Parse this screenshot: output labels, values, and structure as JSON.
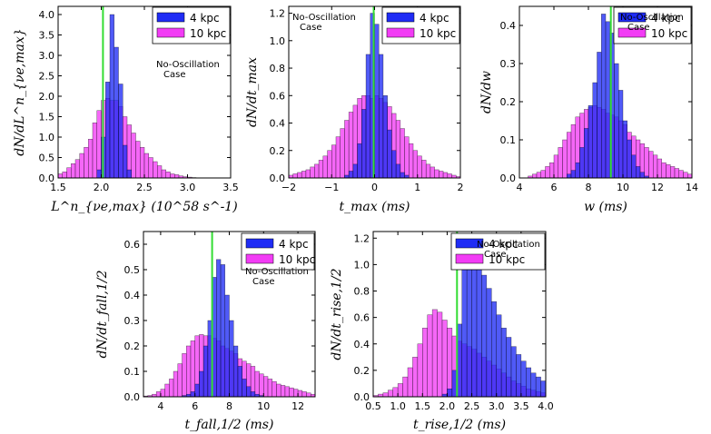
{
  "colors": {
    "blue": "#1f2cf5",
    "magenta": "#f23cf5",
    "green": "#33dd33"
  },
  "chart_data": [
    {
      "type": "histogram",
      "ylabel": "dN/dL^n_{νe,max}",
      "xlabel": "L^n_{νe,max} (10^58 s^-1)",
      "xlim": [
        1.5,
        3.5
      ],
      "ylim": [
        0,
        4.2
      ],
      "xticks": [
        "1.5",
        "2.0",
        "2.5",
        "3.0",
        "3.5"
      ],
      "yticks": [
        "0.0",
        "0.5",
        "1.0",
        "1.5",
        "2.0",
        "2.5",
        "3.0",
        "3.5",
        "4.0"
      ],
      "vline": 2.02,
      "annotation": [
        "No-Oscillation",
        "Case"
      ],
      "legend": [
        "4 kpc",
        "10 kpc"
      ],
      "bins": {
        "start": 1.5,
        "width": 0.05
      },
      "series": [
        {
          "name": "4 kpc",
          "values": [
            0,
            0,
            0,
            0,
            0,
            0,
            0,
            0,
            0,
            0.2,
            1.0,
            2.35,
            4.0,
            3.2,
            2.3,
            0.8,
            0.2,
            0,
            0,
            0,
            0,
            0,
            0,
            0,
            0,
            0,
            0,
            0,
            0,
            0,
            0,
            0,
            0,
            0,
            0,
            0,
            0,
            0,
            0,
            0
          ]
        },
        {
          "name": "10 kpc",
          "values": [
            0.1,
            0.15,
            0.25,
            0.35,
            0.45,
            0.6,
            0.75,
            0.95,
            1.35,
            1.65,
            1.9,
            1.95,
            1.9,
            1.9,
            1.75,
            1.5,
            1.3,
            1.1,
            0.9,
            0.75,
            0.6,
            0.5,
            0.4,
            0.3,
            0.2,
            0.15,
            0.1,
            0.08,
            0.05,
            0.03,
            0.02,
            0.01,
            0,
            0,
            0,
            0,
            0,
            0,
            0,
            0
          ]
        }
      ]
    },
    {
      "type": "histogram",
      "ylabel": "dN/dt_max",
      "xlabel": "t_max (ms)",
      "xlim": [
        -2,
        2
      ],
      "ylim": [
        0,
        1.25
      ],
      "xticks": [
        "−2",
        "−1",
        "0",
        "1",
        "2"
      ],
      "yticks": [
        "0.0",
        "0.2",
        "0.4",
        "0.6",
        "0.8",
        "1.0",
        "1.2"
      ],
      "vline": -0.02,
      "annotation": [
        "No-Oscillation",
        "Case"
      ],
      "legend": [
        "4 kpc",
        "10 kpc"
      ],
      "bins": {
        "start": -2,
        "width": 0.1
      },
      "series": [
        {
          "name": "4 kpc",
          "values": [
            0,
            0,
            0,
            0,
            0,
            0,
            0,
            0,
            0,
            0,
            0,
            0,
            0,
            0.02,
            0.05,
            0.1,
            0.25,
            0.5,
            0.9,
            1.2,
            1.12,
            0.9,
            0.6,
            0.35,
            0.2,
            0.1,
            0.04,
            0.02,
            0,
            0,
            0,
            0,
            0,
            0,
            0,
            0,
            0,
            0,
            0,
            0
          ]
        },
        {
          "name": "10 kpc",
          "values": [
            0.02,
            0.03,
            0.04,
            0.05,
            0.06,
            0.08,
            0.1,
            0.13,
            0.16,
            0.2,
            0.24,
            0.3,
            0.36,
            0.42,
            0.48,
            0.53,
            0.58,
            0.6,
            0.6,
            0.58,
            0.6,
            0.58,
            0.55,
            0.52,
            0.47,
            0.42,
            0.36,
            0.3,
            0.25,
            0.2,
            0.16,
            0.13,
            0.1,
            0.08,
            0.06,
            0.05,
            0.04,
            0.03,
            0.02,
            0.01
          ]
        }
      ]
    },
    {
      "type": "histogram",
      "ylabel": "dN/dw",
      "xlabel": "w (ms)",
      "xlim": [
        4,
        14
      ],
      "ylim": [
        0,
        0.45
      ],
      "xticks": [
        "4",
        "6",
        "8",
        "10",
        "12",
        "14"
      ],
      "yticks": [
        "0.0",
        "0.1",
        "0.2",
        "0.3",
        "0.4"
      ],
      "vline": 9.3,
      "annotation": [
        "No-Oscillation",
        "Case"
      ],
      "legend": [
        "4 kpc",
        "10 kpc"
      ],
      "bins": {
        "start": 4,
        "width": 0.25
      },
      "series": [
        {
          "name": "4 kpc",
          "values": [
            0,
            0,
            0,
            0,
            0,
            0,
            0,
            0,
            0,
            0,
            0,
            0.01,
            0.02,
            0.04,
            0.08,
            0.13,
            0.19,
            0.25,
            0.33,
            0.43,
            0.41,
            0.38,
            0.3,
            0.23,
            0.15,
            0.1,
            0.06,
            0.03,
            0.015,
            0.005,
            0,
            0,
            0,
            0,
            0,
            0,
            0,
            0,
            0,
            0
          ]
        },
        {
          "name": "10 kpc",
          "values": [
            0,
            0,
            0.005,
            0.01,
            0.015,
            0.02,
            0.03,
            0.04,
            0.06,
            0.08,
            0.1,
            0.12,
            0.14,
            0.16,
            0.17,
            0.18,
            0.185,
            0.19,
            0.185,
            0.18,
            0.17,
            0.165,
            0.16,
            0.15,
            0.14,
            0.12,
            0.11,
            0.1,
            0.09,
            0.08,
            0.07,
            0.06,
            0.05,
            0.04,
            0.035,
            0.03,
            0.025,
            0.02,
            0.015,
            0.01
          ]
        }
      ]
    },
    {
      "type": "histogram",
      "ylabel": "dN/dt_fall,1/2",
      "xlabel": "t_fall,1/2 (ms)",
      "xlim": [
        3,
        13
      ],
      "ylim": [
        0,
        0.65
      ],
      "xticks": [
        "4",
        "6",
        "8",
        "10",
        "12"
      ],
      "yticks": [
        "0.0",
        "0.1",
        "0.2",
        "0.3",
        "0.4",
        "0.5",
        "0.6"
      ],
      "vline": 7.0,
      "annotation": [
        "No-Oscillation",
        "Case"
      ],
      "legend": [
        "4 kpc",
        "10 kpc"
      ],
      "bins": {
        "start": 3,
        "width": 0.25
      },
      "series": [
        {
          "name": "4 kpc",
          "values": [
            0,
            0,
            0,
            0,
            0,
            0,
            0,
            0,
            0,
            0.005,
            0.01,
            0.02,
            0.05,
            0.1,
            0.2,
            0.3,
            0.47,
            0.54,
            0.52,
            0.4,
            0.3,
            0.2,
            0.12,
            0.07,
            0.04,
            0.02,
            0.01,
            0.005,
            0,
            0,
            0,
            0,
            0,
            0,
            0,
            0,
            0,
            0,
            0,
            0
          ]
        },
        {
          "name": "10 kpc",
          "values": [
            0.003,
            0.005,
            0.01,
            0.02,
            0.03,
            0.05,
            0.07,
            0.1,
            0.13,
            0.17,
            0.2,
            0.22,
            0.24,
            0.245,
            0.24,
            0.24,
            0.23,
            0.22,
            0.2,
            0.19,
            0.18,
            0.17,
            0.15,
            0.14,
            0.13,
            0.12,
            0.1,
            0.09,
            0.08,
            0.07,
            0.06,
            0.05,
            0.045,
            0.04,
            0.035,
            0.03,
            0.025,
            0.02,
            0.015,
            0.01
          ]
        }
      ]
    },
    {
      "type": "histogram",
      "ylabel": "dN/dt_rise,1/2",
      "xlabel": "t_rise,1/2 (ms)",
      "xlim": [
        0.5,
        4.0
      ],
      "ylim": [
        0,
        1.25
      ],
      "xticks": [
        "0.5",
        "1.0",
        "1.5",
        "2.0",
        "2.5",
        "3.0",
        "3.5",
        "4.0"
      ],
      "yticks": [
        "0.0",
        "0.2",
        "0.4",
        "0.6",
        "0.8",
        "1.0",
        "1.2"
      ],
      "vline": 2.2,
      "annotation": [
        "No-Oscillation",
        "Case"
      ],
      "legend": [
        "4 kpc",
        "10 kpc"
      ],
      "bins": {
        "start": 0.5,
        "width": 0.1
      },
      "series": [
        {
          "name": "4 kpc",
          "values": [
            0,
            0,
            0,
            0,
            0,
            0,
            0,
            0,
            0,
            0,
            0,
            0,
            0,
            0,
            0.02,
            0.06,
            0.2,
            0.55,
            0.98,
            1.1,
            1.08,
            1.0,
            0.92,
            0.82,
            0.72,
            0.62,
            0.52,
            0.45,
            0.38,
            0.32,
            0.27,
            0.22,
            0.18,
            0.15,
            0.12
          ]
        },
        {
          "name": "10 kpc",
          "values": [
            0.01,
            0.02,
            0.03,
            0.05,
            0.07,
            0.1,
            0.15,
            0.22,
            0.3,
            0.4,
            0.52,
            0.62,
            0.66,
            0.64,
            0.58,
            0.52,
            0.46,
            0.42,
            0.4,
            0.38,
            0.36,
            0.33,
            0.3,
            0.27,
            0.24,
            0.21,
            0.18,
            0.15,
            0.12,
            0.1,
            0.08,
            0.06,
            0.05,
            0.04,
            0.03
          ]
        }
      ]
    }
  ]
}
